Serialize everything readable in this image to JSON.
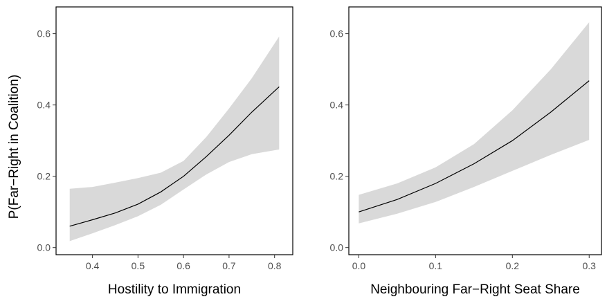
{
  "colors": {
    "band": "#d9d9d9",
    "line": "#000000",
    "frame": "#000000",
    "background": "#ffffff"
  },
  "shared": {
    "ylabel": "P(Far−Right in Coalition)"
  },
  "chart_data": [
    {
      "type": "line",
      "xlabel": "Hostility to Immigration",
      "ylabel": "P(Far−Right in Coalition)",
      "xlim": [
        0.32,
        0.84
      ],
      "ylim": [
        -0.02,
        0.675
      ],
      "x_ticks": [
        0.4,
        0.5,
        0.6,
        0.7,
        0.8
      ],
      "x_tick_labels": [
        "0.4",
        "0.5",
        "0.6",
        "0.7",
        "0.8"
      ],
      "y_ticks": [
        0.0,
        0.2,
        0.4,
        0.6
      ],
      "y_tick_labels": [
        "0.0",
        "0.2",
        "0.4",
        "0.6"
      ],
      "grid": false,
      "series": [
        {
          "x": [
            0.35,
            0.4,
            0.45,
            0.5,
            0.55,
            0.6,
            0.65,
            0.7,
            0.75,
            0.81
          ],
          "values": [
            0.06,
            0.078,
            0.097,
            0.122,
            0.156,
            0.2,
            0.255,
            0.315,
            0.38,
            0.451
          ],
          "lower": [
            0.018,
            0.04,
            0.063,
            0.088,
            0.12,
            0.163,
            0.205,
            0.24,
            0.262,
            0.275
          ],
          "upper": [
            0.165,
            0.17,
            0.182,
            0.195,
            0.21,
            0.243,
            0.31,
            0.39,
            0.475,
            0.592
          ]
        }
      ]
    },
    {
      "type": "line",
      "xlabel": "Neighbouring Far−Right Seat Share",
      "ylabel": "",
      "xlim": [
        -0.013,
        0.316
      ],
      "ylim": [
        -0.02,
        0.675
      ],
      "x_ticks": [
        0.0,
        0.1,
        0.2,
        0.3
      ],
      "x_tick_labels": [
        "0.0",
        "0.1",
        "0.2",
        "0.3"
      ],
      "y_ticks": [
        0.0,
        0.2,
        0.4,
        0.6
      ],
      "y_tick_labels": [
        "0.0",
        "0.2",
        "0.4",
        "0.6"
      ],
      "grid": false,
      "series": [
        {
          "x": [
            0.0,
            0.05,
            0.1,
            0.15,
            0.2,
            0.25,
            0.3
          ],
          "values": [
            0.1,
            0.135,
            0.18,
            0.235,
            0.3,
            0.38,
            0.468
          ],
          "lower": [
            0.068,
            0.095,
            0.128,
            0.17,
            0.215,
            0.26,
            0.302
          ],
          "upper": [
            0.148,
            0.18,
            0.225,
            0.29,
            0.385,
            0.5,
            0.632
          ]
        }
      ]
    }
  ]
}
